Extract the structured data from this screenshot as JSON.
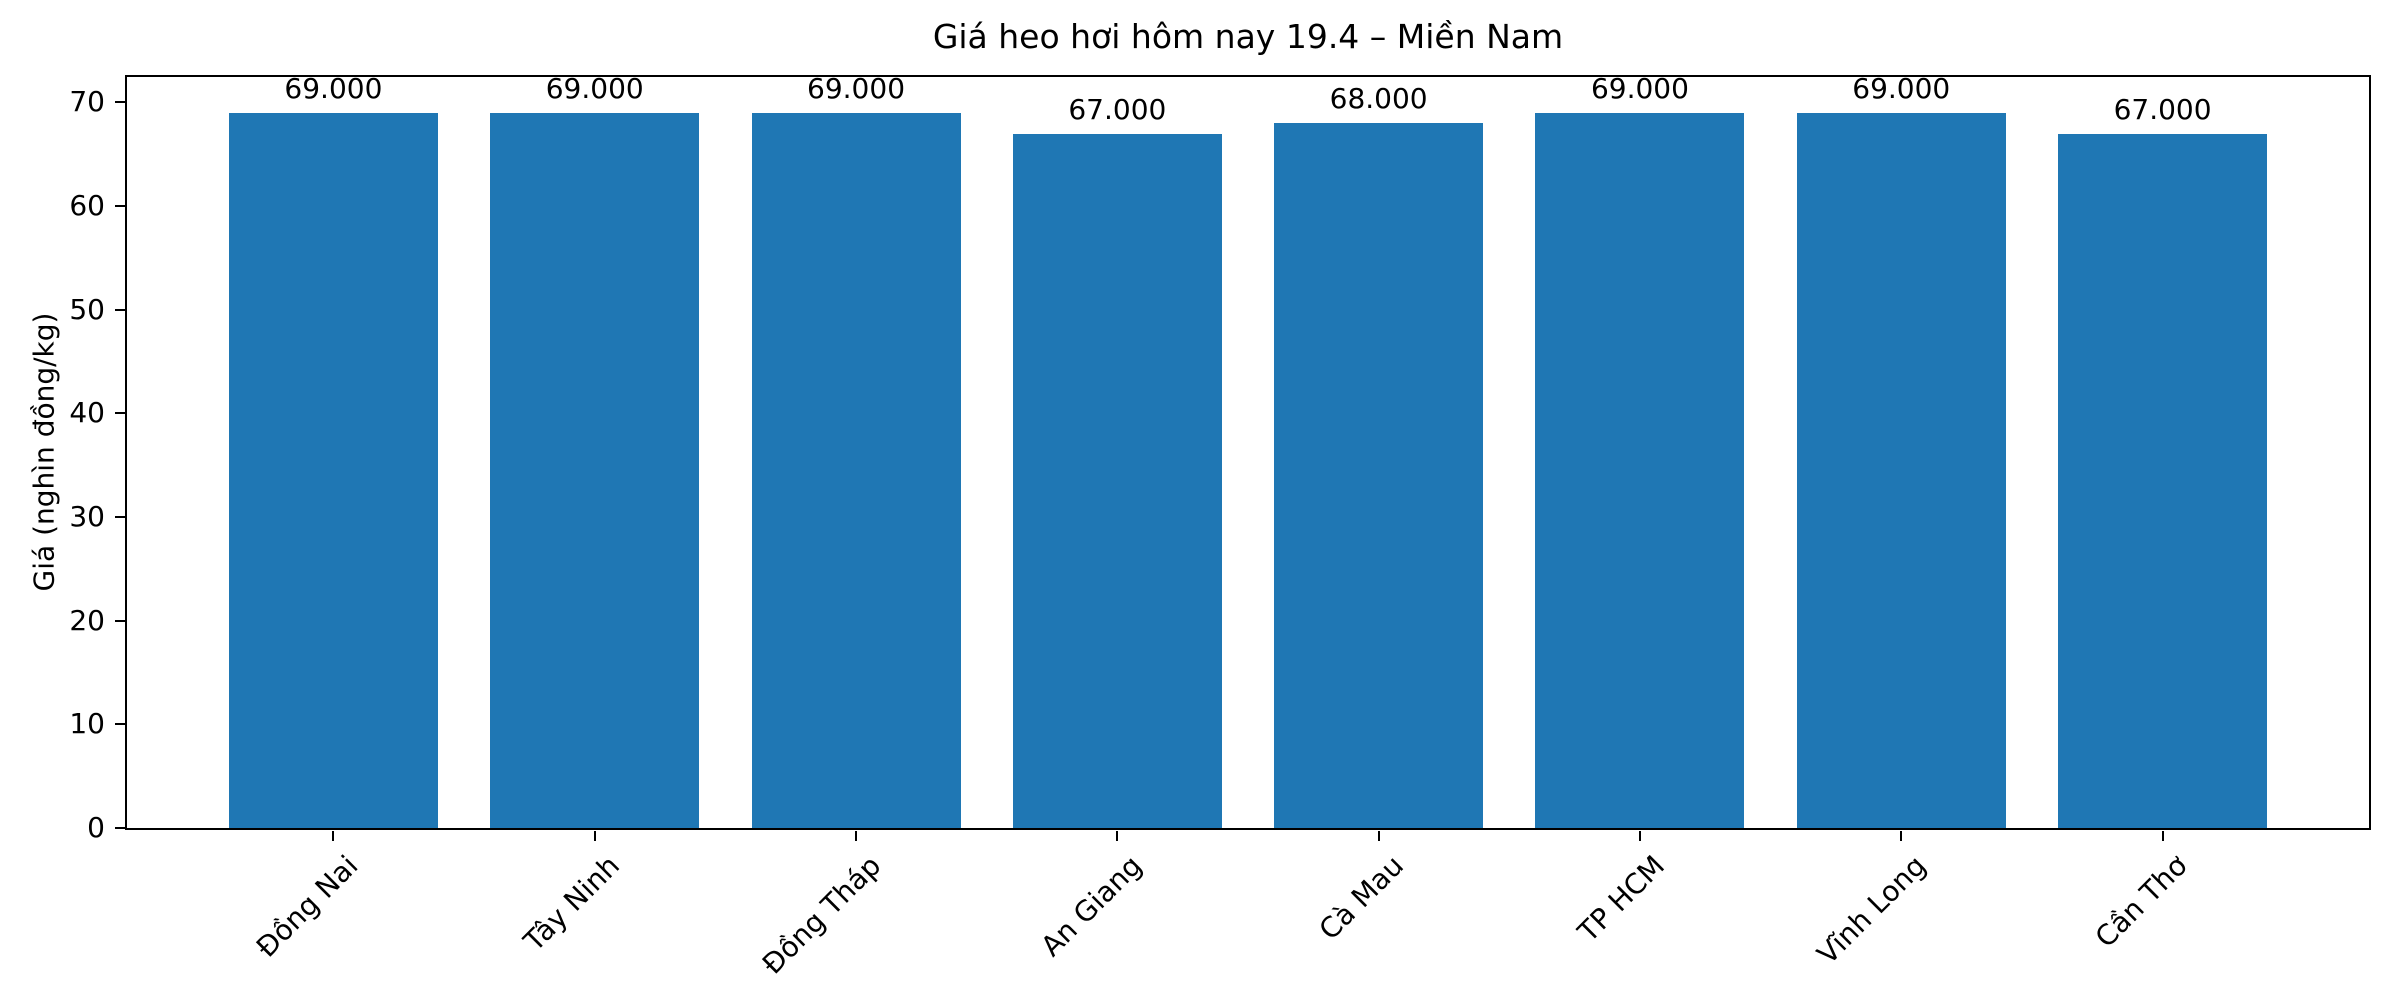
{
  "chart_data": {
    "type": "bar",
    "title": "Giá heo hơi hôm nay 19.4 – Miền Nam",
    "xlabel": "",
    "ylabel": "Giá (nghìn đồng/kg)",
    "categories": [
      "Đồng Nai",
      "Tây Ninh",
      "Đồng Tháp",
      "An Giang",
      "Cà Mau",
      "TP HCM",
      "Vĩnh Long",
      "Cần Thơ"
    ],
    "values": [
      69,
      69,
      69,
      67,
      68,
      69,
      69,
      67
    ],
    "bar_labels": [
      "69.000",
      "69.000",
      "69.000",
      "67.000",
      "68.000",
      "69.000",
      "69.000",
      "67.000"
    ],
    "yticks": [
      0,
      10,
      20,
      30,
      40,
      50,
      60,
      70
    ],
    "ylim": [
      0,
      72.45
    ],
    "bar_color": "#1f77b4",
    "grid": false,
    "legend": null,
    "xtick_rotation_deg": 45
  }
}
